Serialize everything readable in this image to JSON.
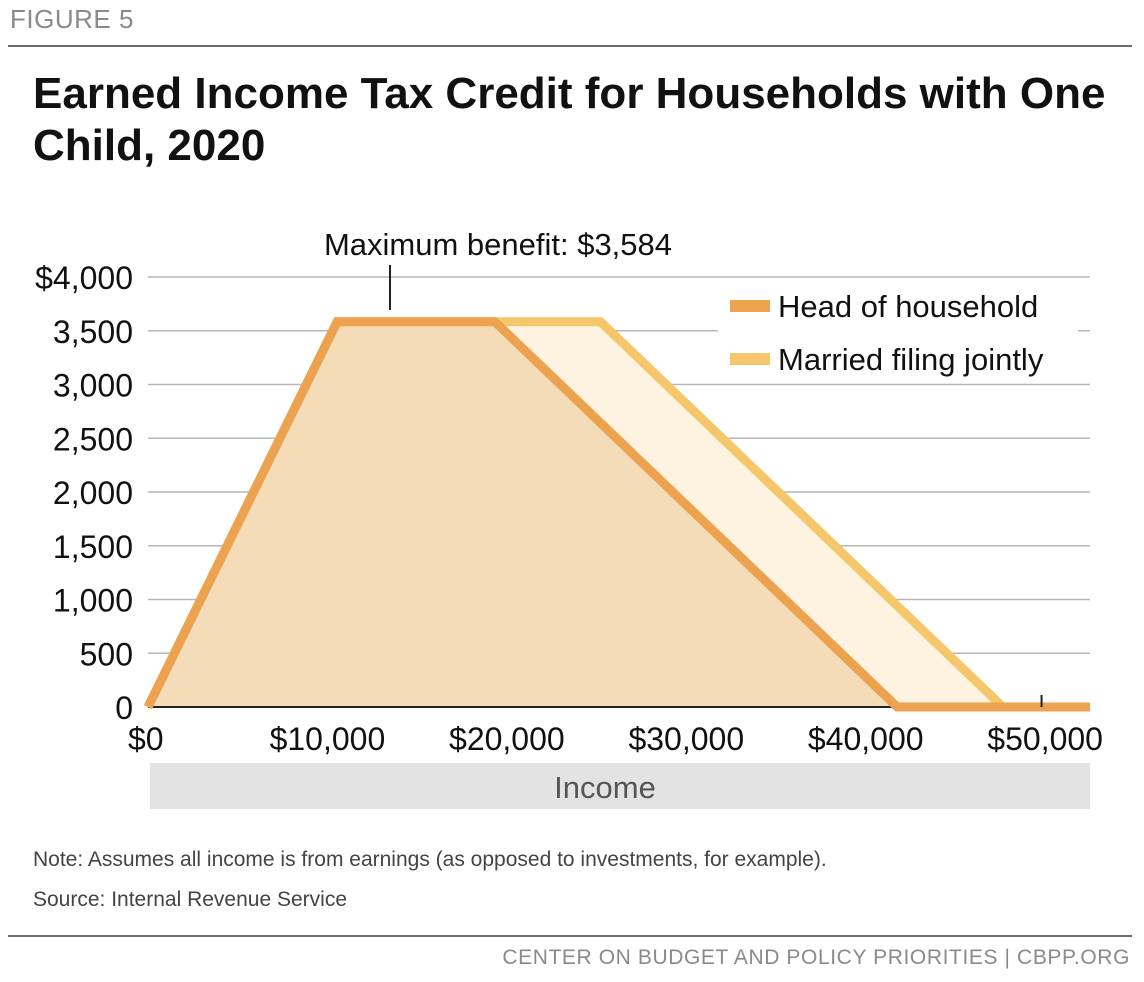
{
  "header": {
    "figure_label": "FIGURE 5",
    "title": "Earned Income Tax Credit for Households with One Child, 2020"
  },
  "chart_data": {
    "type": "line",
    "title": "Earned Income Tax Credit for Households with One Child, 2020",
    "xlabel": "Income",
    "ylabel": "",
    "xlim": [
      0,
      52500
    ],
    "ylim": [
      0,
      4000
    ],
    "x_ticks": [
      0,
      10000,
      20000,
      30000,
      40000,
      50000
    ],
    "x_tick_labels": [
      "$0",
      "$10,000",
      "$20,000",
      "$30,000",
      "$40,000",
      "$50,000"
    ],
    "y_ticks": [
      0,
      500,
      1000,
      1500,
      2000,
      2500,
      3000,
      3500,
      4000
    ],
    "y_tick_labels": [
      "0",
      "500",
      "1,000",
      "1,500",
      "2,000",
      "2,500",
      "3,000",
      "3,500",
      "$4,000"
    ],
    "grid": true,
    "legend_position": "top-right",
    "series": [
      {
        "name": "Head of household",
        "color": "#eca24e",
        "x": [
          0,
          10540,
          19330,
          41756,
          52500
        ],
        "y": [
          0,
          3584,
          3584,
          0,
          0
        ]
      },
      {
        "name": "Married filing jointly",
        "color": "#f6c76a",
        "x": [
          0,
          10540,
          25220,
          47646,
          52500
        ],
        "y": [
          0,
          3584,
          3584,
          0,
          0
        ]
      }
    ],
    "annotations": [
      {
        "text": "Maximum benefit: $3,584",
        "x": 13500,
        "y": 3584
      }
    ]
  },
  "notes": {
    "note": "Note: Assumes all income is from earnings (as opposed to investments, for example).",
    "source": "Source: Internal Revenue Service"
  },
  "footer": {
    "text": "CENTER ON BUDGET AND POLICY PRIORITIES | CBPP.ORG"
  }
}
